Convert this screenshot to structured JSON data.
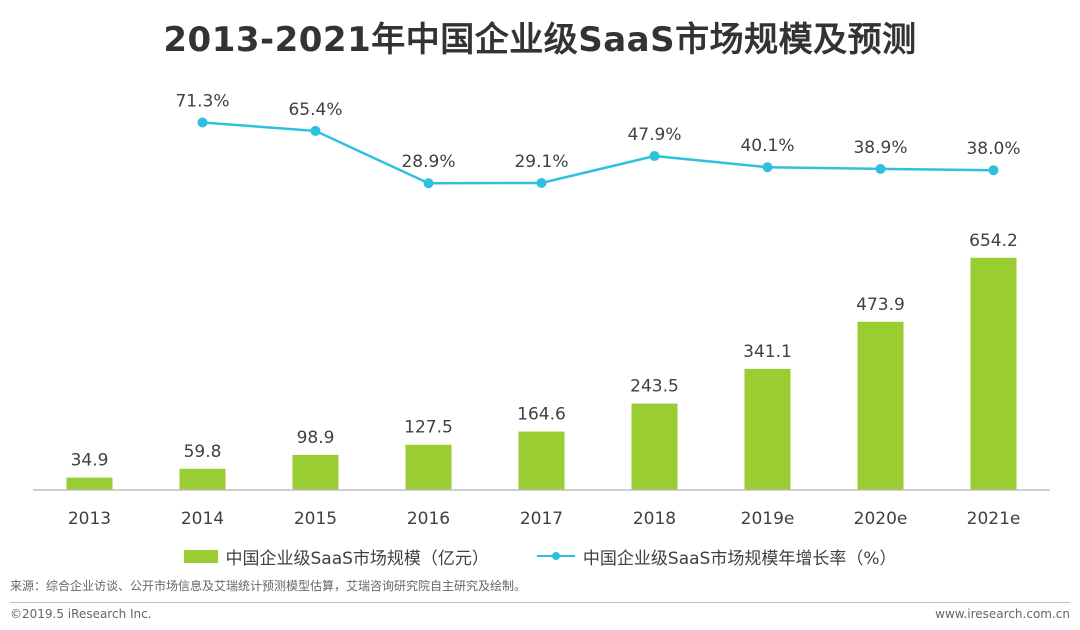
{
  "title": "2013-2021年中国企业级SaaS市场规模及预测",
  "legend": {
    "bar_label": "中国企业级SaaS市场规模（亿元）",
    "line_label": "中国企业级SaaS市场规模年增长率（%）"
  },
  "source_text": "来源：综合企业访谈、公开市场信息及艾瑞统计预测模型估算，艾瑞咨询研究院自主研究及绘制。",
  "footer": {
    "copyright": "©2019.5 iResearch Inc.",
    "website": "www.iresearch.com.cn"
  },
  "colors": {
    "bar": "#9ACD32",
    "line": "#2DC1DD",
    "axis": "#BFBFBF",
    "text": "#404040"
  },
  "chart_data": {
    "type": "bar",
    "categories": [
      "2013",
      "2014",
      "2015",
      "2016",
      "2017",
      "2018",
      "2019e",
      "2020e",
      "2021e"
    ],
    "series": [
      {
        "name": "中国企业级SaaS市场规模（亿元）",
        "type": "bar",
        "values": [
          34.9,
          59.8,
          98.9,
          127.5,
          164.6,
          243.5,
          341.1,
          473.9,
          654.2
        ],
        "labels": [
          "34.9",
          "59.8",
          "98.9",
          "127.5",
          "164.6",
          "243.5",
          "341.1",
          "473.9",
          "654.2"
        ]
      },
      {
        "name": "中国企业级SaaS市场规模年增长率（%）",
        "type": "line",
        "values": [
          null,
          71.3,
          65.4,
          28.9,
          29.1,
          47.9,
          40.1,
          38.9,
          38.0
        ],
        "labels": [
          "",
          "71.3%",
          "65.4%",
          "28.9%",
          "29.1%",
          "47.9%",
          "40.1%",
          "38.9%",
          "38.0%"
        ]
      }
    ],
    "title": "2013-2021年中国企业级SaaS市场规模及预测",
    "xlabel": "",
    "ylabel": "",
    "ylim": [
      0,
      700
    ],
    "line_ylim": [
      0,
      100
    ],
    "grid": false,
    "legend_position": "bottom"
  }
}
